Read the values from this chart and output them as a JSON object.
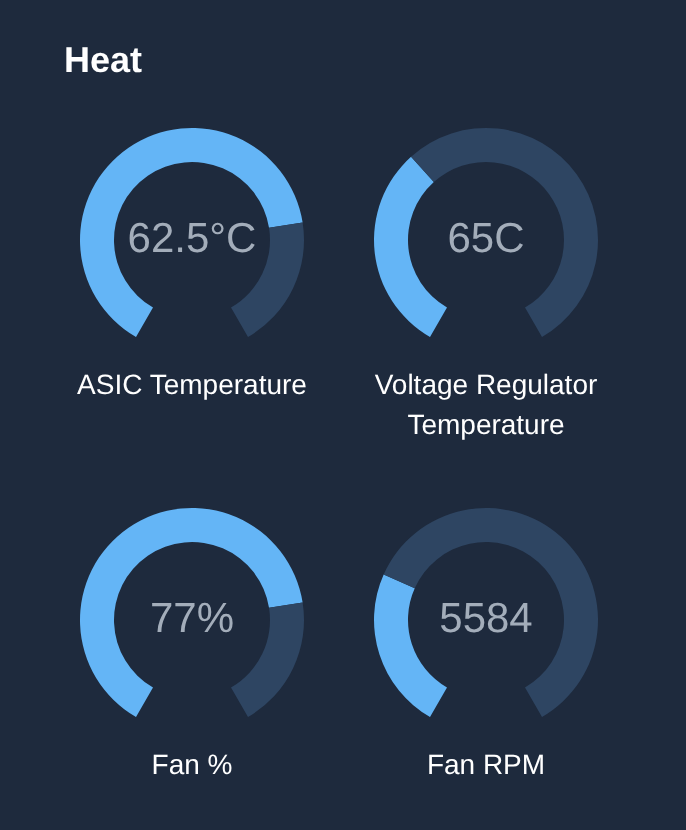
{
  "chart_data": [
    {
      "type": "other",
      "title": "Heat"
    },
    {
      "type": "donut",
      "title": "ASIC Temperature",
      "annotations": [
        "62.5°C"
      ],
      "categories": [
        null,
        null
      ],
      "values": [
        77,
        23
      ],
      "colors": [
        "#64b5f6",
        "#2e4562"
      ]
    },
    {
      "type": "donut",
      "title": "Voltage Regulator Temperature",
      "annotations": [
        "65C"
      ],
      "categories": [
        null,
        null
      ],
      "values": [
        36,
        64
      ],
      "colors": [
        "#64b5f6",
        "#2e4562"
      ]
    },
    {
      "type": "donut",
      "title": "Fan %",
      "annotations": [
        "77%"
      ],
      "categories": [
        null,
        null
      ],
      "values": [
        77,
        23
      ],
      "colors": [
        "#64b5f6",
        "#2e4562"
      ]
    },
    {
      "type": "donut",
      "title": "Fan RPM",
      "annotations": [
        "5584"
      ],
      "categories": [
        null,
        null
      ],
      "values": [
        28,
        72
      ],
      "colors": [
        "#64b5f6",
        "#2e4562"
      ]
    }
  ]
}
